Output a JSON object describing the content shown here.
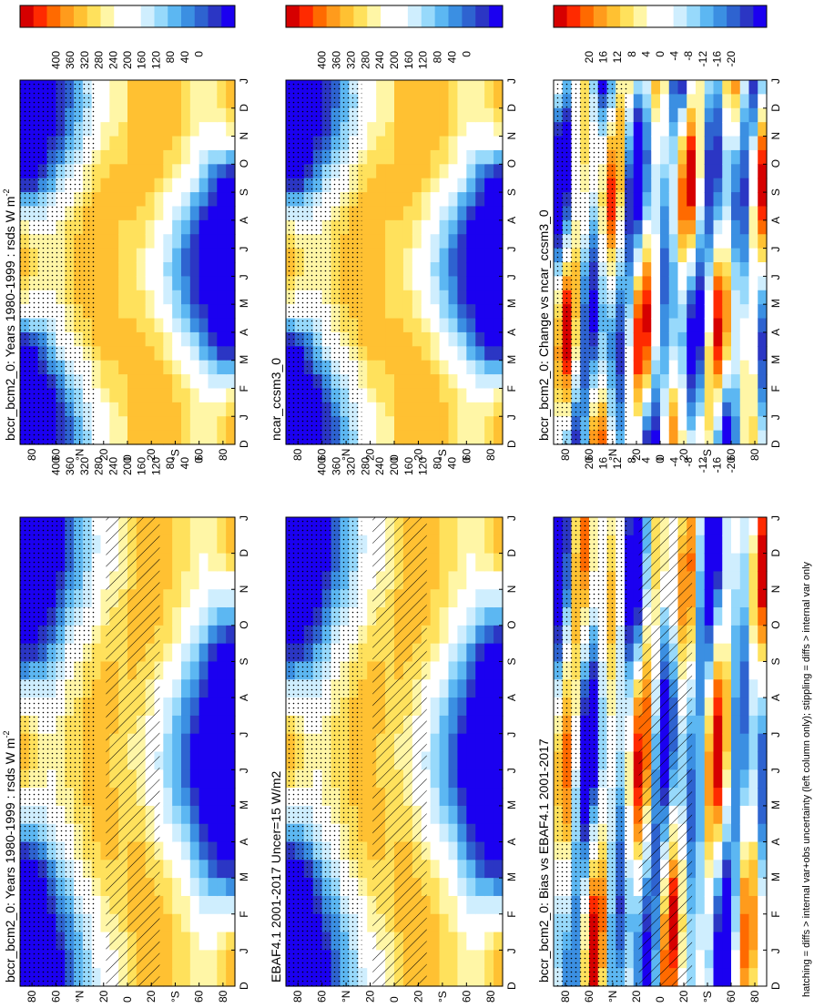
{
  "footer_note": "hatching = diffs > internal var+obs uncertainty (left column only); stippling = diffs > internal var only",
  "chart_data": [
    {
      "type": "heatmap",
      "title": "bccr_bcm2_0: Years 1980-1999 : rsds W m",
      "title_sup": "-2",
      "x_ticks": [
        "D",
        "J",
        "F",
        "M",
        "A",
        "M",
        "J",
        "J",
        "A",
        "S",
        "O",
        "N",
        "D",
        "J"
      ],
      "y_ticks": [
        "80",
        "60",
        "°N",
        "20",
        "0",
        "20",
        "°S",
        "60",
        "80"
      ],
      "colorbar_ticks": [
        "400",
        "360",
        "320",
        "280",
        "240",
        "200",
        "160",
        "120",
        "80",
        "40",
        "0"
      ],
      "colorbar_colors": [
        "#d60000",
        "#ff2a00",
        "#ff6a00",
        "#ff9b1c",
        "#ffc132",
        "#ffe15c",
        "#fff6a6",
        "#ffffff",
        "#ffffff",
        "#cfeefe",
        "#97d9fb",
        "#5cb7f2",
        "#3b8fe2",
        "#2e63d0",
        "#2b36c4",
        "#1b00f0"
      ],
      "range": [
        0,
        400
      ],
      "hatching": true,
      "stippling": true,
      "mode": "abs"
    },
    {
      "type": "heatmap",
      "title": "bccr_bcm2_0: Years 1980-1999 : rsds W m",
      "title_sup": "-2",
      "x_ticks": [
        "D",
        "J",
        "F",
        "M",
        "A",
        "M",
        "J",
        "J",
        "A",
        "S",
        "O",
        "N",
        "D",
        "J"
      ],
      "y_ticks": [
        "80",
        "60",
        "°N",
        "20",
        "0",
        "20",
        "°S",
        "60",
        "80"
      ],
      "colorbar_ticks": [
        "400",
        "360",
        "320",
        "280",
        "240",
        "200",
        "160",
        "120",
        "80",
        "40",
        "0"
      ],
      "colorbar_colors": [
        "#d60000",
        "#ff2a00",
        "#ff6a00",
        "#ff9b1c",
        "#ffc132",
        "#ffe15c",
        "#fff6a6",
        "#ffffff",
        "#ffffff",
        "#cfeefe",
        "#97d9fb",
        "#5cb7f2",
        "#3b8fe2",
        "#2e63d0",
        "#2b36c4",
        "#1b00f0"
      ],
      "range": [
        0,
        400
      ],
      "hatching": false,
      "stippling": true,
      "mode": "abs"
    },
    {
      "type": "heatmap",
      "title": "EBAF4.1 2001-2017 Uncer=15 W/m2",
      "title_sup": "",
      "x_ticks": [
        "D",
        "J",
        "F",
        "M",
        "A",
        "M",
        "J",
        "J",
        "A",
        "S",
        "O",
        "N",
        "D",
        "J"
      ],
      "y_ticks": [
        "80",
        "60",
        "°N",
        "20",
        "0",
        "20",
        "°S",
        "60",
        "80"
      ],
      "colorbar_ticks": [
        "400",
        "360",
        "320",
        "280",
        "240",
        "200",
        "160",
        "120",
        "80",
        "40",
        "0"
      ],
      "colorbar_colors": [
        "#d60000",
        "#ff2a00",
        "#ff6a00",
        "#ff9b1c",
        "#ffc132",
        "#ffe15c",
        "#fff6a6",
        "#ffffff",
        "#ffffff",
        "#cfeefe",
        "#97d9fb",
        "#5cb7f2",
        "#3b8fe2",
        "#2e63d0",
        "#2b36c4",
        "#1b00f0"
      ],
      "range": [
        0,
        400
      ],
      "hatching": true,
      "stippling": true,
      "mode": "abs"
    },
    {
      "type": "heatmap",
      "title": "ncar_ccsm3_0",
      "title_sup": "",
      "x_ticks": [
        "D",
        "J",
        "F",
        "M",
        "A",
        "M",
        "J",
        "J",
        "A",
        "S",
        "O",
        "N",
        "D",
        "J"
      ],
      "y_ticks": [
        "80",
        "60",
        "°N",
        "20",
        "0",
        "20",
        "°S",
        "60",
        "80"
      ],
      "colorbar_ticks": [
        "400",
        "360",
        "320",
        "280",
        "240",
        "200",
        "160",
        "120",
        "80",
        "40",
        "0"
      ],
      "colorbar_colors": [
        "#d60000",
        "#ff2a00",
        "#ff6a00",
        "#ff9b1c",
        "#ffc132",
        "#ffe15c",
        "#fff6a6",
        "#ffffff",
        "#ffffff",
        "#cfeefe",
        "#97d9fb",
        "#5cb7f2",
        "#3b8fe2",
        "#2e63d0",
        "#2b36c4",
        "#1b00f0"
      ],
      "range": [
        0,
        400
      ],
      "hatching": false,
      "stippling": true,
      "mode": "abs"
    },
    {
      "type": "heatmap",
      "title": "bccr_bcm2_0: Bias vs EBAF4.1 2001-2017",
      "title_sup": "",
      "x_ticks": [
        "D",
        "J",
        "F",
        "M",
        "A",
        "M",
        "J",
        "J",
        "A",
        "S",
        "O",
        "N",
        "D",
        "J"
      ],
      "y_ticks": [
        "80",
        "60",
        "°N",
        "20",
        "0",
        "20",
        "°S",
        "60",
        "80"
      ],
      "colorbar_ticks": [
        "20",
        "16",
        "12",
        "8",
        "4",
        "0",
        "-4",
        "-8",
        "-12",
        "-16",
        "-20"
      ],
      "colorbar_colors": [
        "#d60000",
        "#ff2a00",
        "#ff6a00",
        "#ff9b1c",
        "#ffc132",
        "#ffe15c",
        "#fff6a6",
        "#ffffff",
        "#ffffff",
        "#cfeefe",
        "#97d9fb",
        "#5cb7f2",
        "#3b8fe2",
        "#2e63d0",
        "#2b36c4",
        "#1b00f0"
      ],
      "range": [
        -20,
        20
      ],
      "hatching": true,
      "stippling": true,
      "mode": "bias"
    },
    {
      "type": "heatmap",
      "title": "bccr_bcm2_0: Change vs ncar_ccsm3_0",
      "title_sup": "",
      "x_ticks": [
        "D",
        "J",
        "F",
        "M",
        "A",
        "M",
        "J",
        "J",
        "A",
        "S",
        "O",
        "N",
        "D",
        "J"
      ],
      "y_ticks": [
        "80",
        "60",
        "°N",
        "20",
        "0",
        "20",
        "°S",
        "60",
        "80"
      ],
      "colorbar_ticks": [
        "20",
        "16",
        "12",
        "8",
        "4",
        "0",
        "-4",
        "-8",
        "-12",
        "-16",
        "-20"
      ],
      "colorbar_colors": [
        "#d60000",
        "#ff2a00",
        "#ff6a00",
        "#ff9b1c",
        "#ffc132",
        "#ffe15c",
        "#fff6a6",
        "#ffffff",
        "#ffffff",
        "#cfeefe",
        "#97d9fb",
        "#5cb7f2",
        "#3b8fe2",
        "#2e63d0",
        "#2b36c4",
        "#1b00f0"
      ],
      "range": [
        -20,
        20
      ],
      "hatching": false,
      "stippling": true,
      "mode": "change"
    }
  ]
}
